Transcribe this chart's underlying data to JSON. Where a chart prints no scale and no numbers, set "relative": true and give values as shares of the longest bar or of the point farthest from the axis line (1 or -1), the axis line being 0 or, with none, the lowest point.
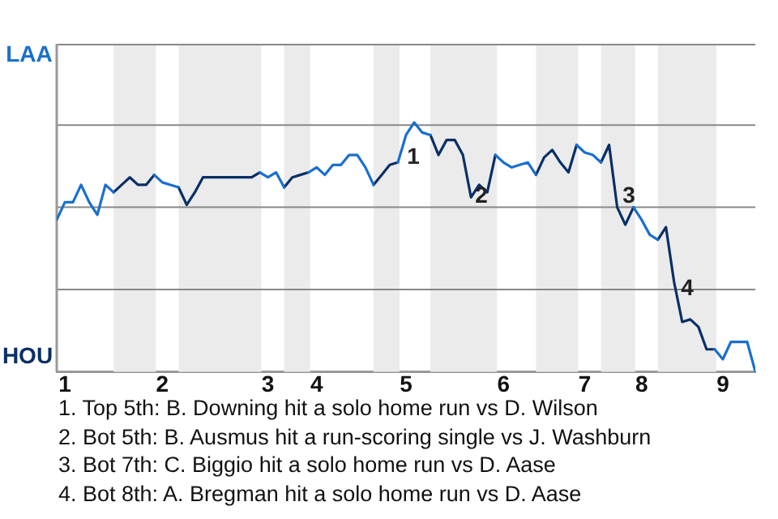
{
  "chart_data": {
    "type": "line",
    "categories": [
      null,
      "1",
      null,
      null,
      null,
      null,
      null,
      null,
      null,
      null,
      null,
      null,
      null,
      "2",
      null,
      null,
      null,
      null,
      null,
      null,
      null,
      null,
      null,
      null,
      null,
      null,
      "3",
      null,
      null,
      null,
      null,
      null,
      "4",
      null,
      null,
      null,
      null,
      null,
      null,
      null,
      null,
      null,
      null,
      "5",
      null,
      null,
      null,
      null,
      null,
      null,
      null,
      null,
      null,
      null,
      null,
      "6",
      null,
      null,
      null,
      null,
      null,
      null,
      null,
      null,
      null,
      "7",
      null,
      null,
      null,
      null,
      null,
      null,
      "8",
      null,
      null,
      null,
      null,
      null,
      null,
      null,
      null,
      null,
      "9",
      null,
      null,
      null,
      null
    ],
    "relative": true,
    "series": [
      {
        "color": "#1a6fcf",
        "values": [
          0.61,
          0.68,
          0.68,
          0.75,
          0.68,
          0.63,
          0.75,
          0.72,
          null,
          null,
          null,
          null,
          0.79,
          0.76,
          0.75,
          0.74,
          null,
          null,
          null,
          null,
          null,
          null,
          null,
          null,
          null,
          0.8,
          0.78,
          0.8,
          0.74,
          null,
          null,
          0.8,
          0.82,
          0.79,
          0.83,
          0.83,
          0.87,
          0.87,
          0.82,
          0.75,
          null,
          null,
          0.84,
          0.95,
          1,
          0.96,
          0.95,
          null,
          null,
          null,
          null,
          null,
          null,
          null,
          0.87,
          0.84,
          0.82,
          0.83,
          0.84,
          0.79,
          null,
          null,
          null,
          null,
          0.91,
          0.88,
          0.87,
          0.84,
          null,
          null,
          null,
          0.66,
          0.61,
          0.55,
          0.53,
          null,
          null,
          null,
          null,
          null,
          null,
          0.09,
          0.05,
          0.12,
          0.12,
          0.12,
          0
        ]
      },
      {
        "color": "#0a2f66",
        "values": [
          null,
          null,
          null,
          null,
          null,
          null,
          null,
          0.72,
          0.75,
          0.78,
          0.75,
          0.75,
          0.79,
          null,
          null,
          0.74,
          0.67,
          0.72,
          0.78,
          0.78,
          0.78,
          0.78,
          0.78,
          0.78,
          0.78,
          0.8,
          null,
          null,
          0.74,
          0.78,
          0.79,
          0.8,
          null,
          null,
          null,
          null,
          null,
          null,
          null,
          0.75,
          0.79,
          0.83,
          0.84,
          null,
          null,
          null,
          0.95,
          0.87,
          0.93,
          0.93,
          0.87,
          0.7,
          0.75,
          0.72,
          0.87,
          null,
          null,
          null,
          null,
          0.79,
          0.86,
          0.89,
          0.84,
          0.8,
          0.91,
          null,
          null,
          0.84,
          0.91,
          0.66,
          0.59,
          0.66,
          null,
          null,
          0.53,
          0.58,
          0.36,
          0.2,
          0.21,
          0.18,
          0.09,
          0.09,
          null,
          null,
          null,
          null,
          null
        ]
      }
    ],
    "ref_lines": [
      {
        "axis": "y",
        "value": 0.33,
        "color": "#888888"
      },
      {
        "axis": "y",
        "value": 0.66,
        "color": "#888888"
      },
      {
        "axis": "y",
        "value": 0.99,
        "color": "#888888"
      }
    ],
    "marker": "none",
    "legend": false,
    "annotations": [
      "LAA",
      "HOU",
      "1",
      "2",
      "3",
      "4",
      "1. Top 5th: B. Downing hit a solo home run vs D. Wilson",
      "2. Bot 5th: B. Ausmus hit a run-scoring single vs J. Washburn",
      "3. Bot 7th: C. Biggio hit a solo home run vs D. Aase",
      "4. Bot 8th: A. Bregman hit a solo home run vs D. Aase"
    ]
  }
}
